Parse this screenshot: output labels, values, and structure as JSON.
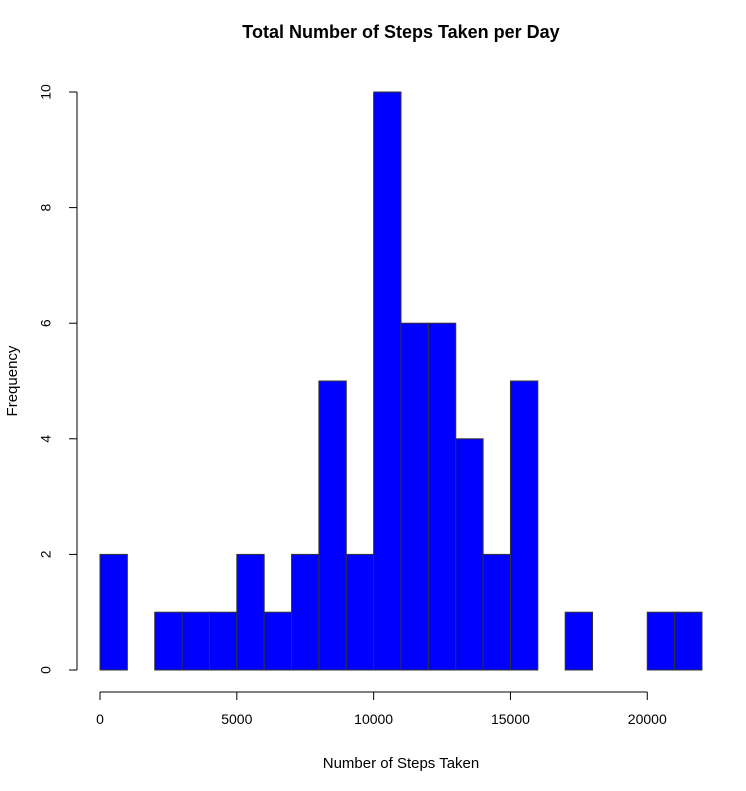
{
  "chart_data": {
    "type": "bar",
    "title": "Total Number of Steps Taken per Day",
    "xlabel": "Number of Steps Taken",
    "ylabel": "Frequency",
    "bin_width": 1000,
    "bins": [
      {
        "x0": 0,
        "x1": 1000,
        "count": 2
      },
      {
        "x0": 1000,
        "x1": 2000,
        "count": 0
      },
      {
        "x0": 2000,
        "x1": 3000,
        "count": 1
      },
      {
        "x0": 3000,
        "x1": 4000,
        "count": 1
      },
      {
        "x0": 4000,
        "x1": 5000,
        "count": 1
      },
      {
        "x0": 5000,
        "x1": 6000,
        "count": 2
      },
      {
        "x0": 6000,
        "x1": 7000,
        "count": 1
      },
      {
        "x0": 7000,
        "x1": 8000,
        "count": 2
      },
      {
        "x0": 8000,
        "x1": 9000,
        "count": 5
      },
      {
        "x0": 9000,
        "x1": 10000,
        "count": 2
      },
      {
        "x0": 10000,
        "x1": 11000,
        "count": 10
      },
      {
        "x0": 11000,
        "x1": 12000,
        "count": 6
      },
      {
        "x0": 12000,
        "x1": 13000,
        "count": 6
      },
      {
        "x0": 13000,
        "x1": 14000,
        "count": 4
      },
      {
        "x0": 14000,
        "x1": 15000,
        "count": 2
      },
      {
        "x0": 15000,
        "x1": 16000,
        "count": 5
      },
      {
        "x0": 16000,
        "x1": 17000,
        "count": 0
      },
      {
        "x0": 17000,
        "x1": 18000,
        "count": 1
      },
      {
        "x0": 18000,
        "x1": 19000,
        "count": 0
      },
      {
        "x0": 19000,
        "x1": 20000,
        "count": 0
      },
      {
        "x0": 20000,
        "x1": 21000,
        "count": 1
      },
      {
        "x0": 21000,
        "x1": 22000,
        "count": 1
      }
    ],
    "xlim": [
      0,
      22000
    ],
    "ylim": [
      0,
      10
    ],
    "x_ticks": [
      0,
      5000,
      10000,
      15000,
      20000
    ],
    "x_tick_labels": [
      "0",
      "5000",
      "10000",
      "15000",
      "20000"
    ],
    "y_ticks": [
      0,
      2,
      4,
      6,
      8,
      10
    ],
    "y_tick_labels": [
      "0",
      "2",
      "4",
      "6",
      "8",
      "10"
    ],
    "grid": false,
    "bar_color": "#0000FF",
    "bar_border_color": "#333333"
  }
}
